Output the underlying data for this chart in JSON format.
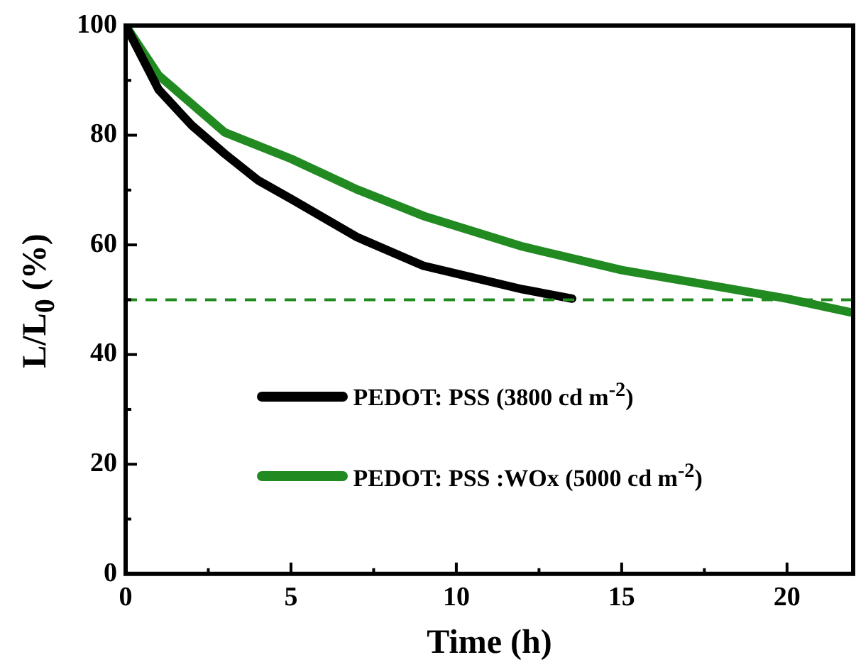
{
  "chart_data": {
    "type": "line",
    "xlabel": "Time (h)",
    "ylabel": "L/L$_{0}$ (%)",
    "xlim": [
      0,
      22
    ],
    "xticks": [
      0,
      {
        "value": 2.5,
        "label": null
      },
      5,
      {
        "value": 7.5,
        "label": null
      },
      10,
      {
        "value": 12.5,
        "label": null
      },
      15,
      {
        "value": 17.5,
        "label": null
      },
      20
    ],
    "ylim": [
      0,
      100
    ],
    "yticks": [
      0,
      {
        "value": 10,
        "label": null
      },
      20,
      {
        "value": 30,
        "label": null
      },
      40,
      {
        "value": 50,
        "label": null
      },
      60,
      {
        "value": 70,
        "label": null
      },
      80,
      {
        "value": 90,
        "label": null
      },
      100
    ],
    "grid": false,
    "legend": "bottom",
    "marker": "none",
    "line_style": "solid",
    "series": [
      {
        "name": "PEDOT: PSS (3800 cd m$^{-2}$)",
        "color": "#000000",
        "x": [
          0,
          1,
          2,
          3,
          4,
          5,
          7,
          9,
          12,
          13.5
        ],
        "values": [
          100,
          88.3,
          81.8,
          76.6,
          71.8,
          68.4,
          61.4,
          56.2,
          51.9,
          50.2
        ]
      },
      {
        "name": "PEDOT: PSS :WOx (5000 cd m$^{-2}$)",
        "color": "#218a21",
        "x": [
          0,
          1,
          2,
          3,
          5,
          7,
          9,
          12,
          15,
          18,
          20,
          22
        ],
        "values": [
          100,
          90.9,
          85.7,
          80.5,
          75.7,
          70.1,
          65.3,
          59.7,
          55.4,
          52.3,
          50.2,
          47.6
        ]
      }
    ],
    "ref_lines": [
      {
        "axis": "y",
        "value": 50,
        "color": "#218a21",
        "line_style": "dashed"
      }
    ]
  }
}
